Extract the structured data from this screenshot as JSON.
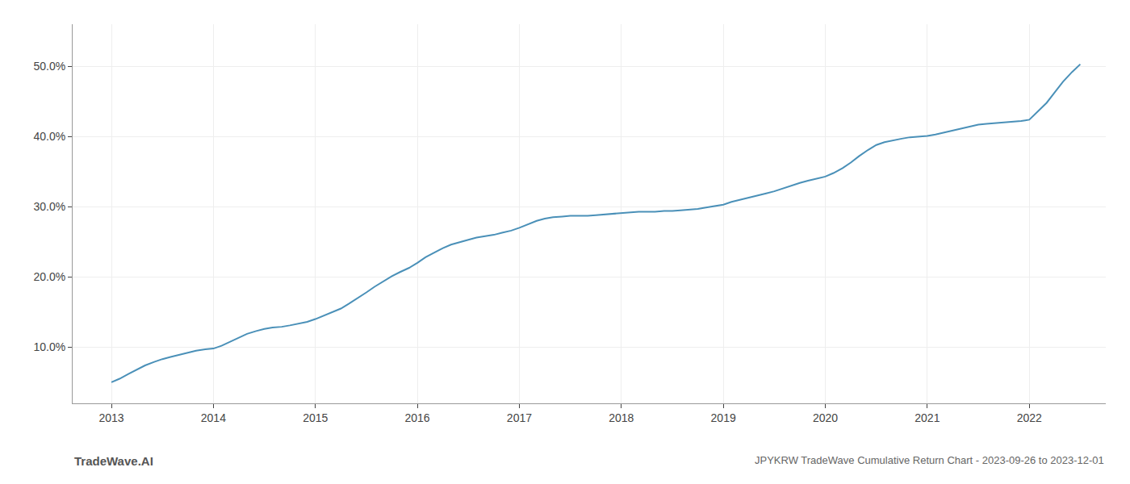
{
  "chart_data": {
    "type": "line",
    "title": "JPYKRW TradeWave Cumulative Return Chart - 2023-09-26 to 2023-12-01",
    "annotations": [
      "TradeWave.AI"
    ],
    "color": "#4a90b8",
    "grid": true,
    "x": [
      2013.0,
      2013.08,
      2013.17,
      2013.25,
      2013.33,
      2013.42,
      2013.5,
      2013.58,
      2013.67,
      2013.75,
      2013.83,
      2013.92,
      2014.0,
      2014.08,
      2014.17,
      2014.25,
      2014.33,
      2014.42,
      2014.5,
      2014.58,
      2014.67,
      2014.75,
      2014.83,
      2014.92,
      2015.0,
      2015.08,
      2015.17,
      2015.25,
      2015.33,
      2015.42,
      2015.5,
      2015.58,
      2015.67,
      2015.75,
      2015.83,
      2015.92,
      2016.0,
      2016.08,
      2016.17,
      2016.25,
      2016.33,
      2016.42,
      2016.5,
      2016.58,
      2016.67,
      2016.75,
      2016.83,
      2016.92,
      2017.0,
      2017.08,
      2017.17,
      2017.25,
      2017.33,
      2017.42,
      2017.5,
      2017.58,
      2017.67,
      2017.75,
      2017.83,
      2017.92,
      2018.0,
      2018.08,
      2018.17,
      2018.25,
      2018.33,
      2018.42,
      2018.5,
      2018.58,
      2018.67,
      2018.75,
      2018.83,
      2018.92,
      2019.0,
      2019.08,
      2019.17,
      2019.25,
      2019.33,
      2019.42,
      2019.5,
      2019.58,
      2019.67,
      2019.75,
      2019.83,
      2019.92,
      2020.0,
      2020.08,
      2020.17,
      2020.25,
      2020.33,
      2020.42,
      2020.5,
      2020.58,
      2020.67,
      2020.75,
      2020.83,
      2020.92,
      2021.0,
      2021.08,
      2021.17,
      2021.25,
      2021.33,
      2021.42,
      2021.5,
      2021.58,
      2021.67,
      2021.75,
      2021.83,
      2021.92,
      2022.0,
      2022.08,
      2022.17,
      2022.25,
      2022.33,
      2022.42,
      2022.5
    ],
    "values": [
      5.0,
      5.5,
      6.2,
      6.8,
      7.4,
      7.9,
      8.3,
      8.6,
      8.9,
      9.2,
      9.5,
      9.7,
      9.8,
      10.2,
      10.8,
      11.4,
      11.9,
      12.3,
      12.6,
      12.8,
      12.9,
      13.1,
      13.3,
      13.6,
      14.0,
      14.5,
      15.0,
      15.5,
      16.2,
      17.0,
      17.8,
      18.6,
      19.4,
      20.1,
      20.7,
      21.3,
      22.0,
      22.8,
      23.5,
      24.1,
      24.6,
      25.0,
      25.3,
      25.6,
      25.8,
      26.0,
      26.3,
      26.6,
      27.0,
      27.5,
      28.0,
      28.3,
      28.5,
      28.6,
      28.7,
      28.7,
      28.7,
      28.8,
      28.9,
      29.0,
      29.1,
      29.2,
      29.3,
      29.3,
      29.3,
      29.4,
      29.4,
      29.5,
      29.6,
      29.7,
      29.9,
      30.1,
      30.3,
      30.7,
      31.0,
      31.3,
      31.6,
      31.9,
      32.2,
      32.6,
      33.0,
      33.4,
      33.7,
      34.0,
      34.3,
      34.8,
      35.5,
      36.3,
      37.2,
      38.1,
      38.8,
      39.2,
      39.5,
      39.7,
      39.9,
      40.0,
      40.1,
      40.3,
      40.6,
      40.9,
      41.2,
      41.5,
      41.7,
      41.8,
      41.9,
      42.0,
      42.1,
      42.2,
      42.4,
      43.5,
      44.8,
      46.3,
      47.8,
      49.2,
      50.3
    ],
    "xlim": [
      2012.62,
      2022.75
    ],
    "xticks": [
      2013,
      2014,
      2015,
      2016,
      2017,
      2018,
      2019,
      2020,
      2021,
      2022
    ],
    "ylim": [
      2.0,
      56.0
    ],
    "yticks": [
      {
        "value": 10.0,
        "label": "10.0%"
      },
      {
        "value": 20.0,
        "label": "20.0%"
      },
      {
        "value": 30.0,
        "label": "30.0%"
      },
      {
        "value": 40.0,
        "label": "40.0%"
      },
      {
        "value": 50.0,
        "label": "50.0%"
      }
    ]
  }
}
